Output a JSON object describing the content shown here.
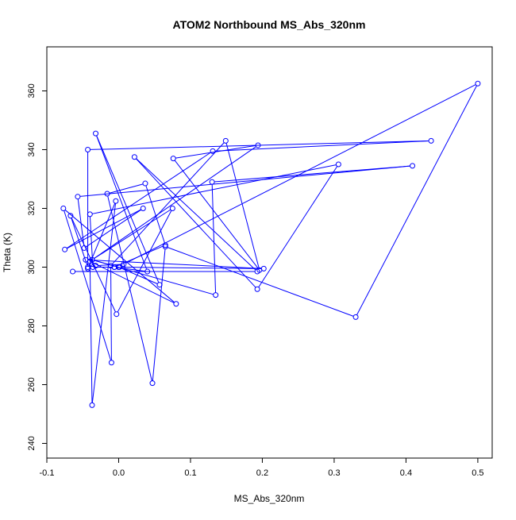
{
  "chart_data": {
    "type": "line",
    "title": "ATOM2 Northbound MS_Abs_320nm",
    "xlabel": "MS_Abs_320nm",
    "ylabel": "Theta (K)",
    "xlim": [
      -0.1,
      0.52
    ],
    "ylim": [
      235,
      375
    ],
    "xticks": [
      -0.1,
      0.0,
      0.1,
      0.2,
      0.3,
      0.4,
      0.5
    ],
    "xtick_labels": [
      "-0.1",
      "0.0",
      "0.1",
      "0.2",
      "0.3",
      "0.4",
      "0.5"
    ],
    "yticks": [
      240,
      260,
      280,
      300,
      320,
      340,
      360
    ],
    "ytick_labels": [
      "240",
      "260",
      "280",
      "300",
      "320",
      "340",
      "360"
    ],
    "grid": false,
    "marker": "open-circle",
    "series": [
      {
        "color": "#0000ff",
        "points": [
          [
            -0.064,
            298.5
          ],
          [
            0.193,
            298.5
          ],
          [
            0.022,
            337.5
          ],
          [
            0.193,
            292.5
          ],
          [
            0.306,
            335.0
          ],
          [
            -0.04,
            318.0
          ],
          [
            -0.036,
            300.0
          ],
          [
            -0.006,
            300.0
          ],
          [
            0.04,
            298.5
          ],
          [
            -0.032,
            345.5
          ],
          [
            0.057,
            294.0
          ],
          [
            0.0,
            300.0
          ],
          [
            -0.037,
            302.5
          ],
          [
            0.135,
            290.5
          ],
          [
            0.13,
            329.0
          ],
          [
            0.409,
            334.5
          ],
          [
            -0.057,
            324.0
          ],
          [
            -0.048,
            306.5
          ],
          [
            0.034,
            320.0
          ],
          [
            -0.075,
            306.0
          ],
          [
            0.131,
            339.5
          ],
          [
            0.435,
            343.0
          ],
          [
            -0.043,
            340.0
          ],
          [
            -0.043,
            299.5
          ],
          [
            -0.004,
            322.5
          ],
          [
            -0.037,
            253.0
          ],
          [
            -0.04,
            302.0
          ],
          [
            0.08,
            287.5
          ],
          [
            -0.077,
            320.0
          ],
          [
            -0.01,
            267.5
          ],
          [
            -0.011,
            300.5
          ],
          [
            0.149,
            343.0
          ],
          [
            0.196,
            299.0
          ],
          [
            0.076,
            337.0
          ],
          [
            0.194,
            341.5
          ],
          [
            -0.037,
            302.5
          ],
          [
            0.075,
            320.0
          ],
          [
            -0.003,
            284.0
          ],
          [
            -0.067,
            317.5
          ],
          [
            -0.043,
            300.0
          ],
          [
            -0.032,
            300.5
          ],
          [
            0.007,
            301.0
          ],
          [
            0.5,
            362.5
          ],
          [
            0.33,
            283.0
          ],
          [
            0.065,
            307.0
          ],
          [
            0.047,
            260.5
          ],
          [
            -0.016,
            325.0
          ],
          [
            0.037,
            328.5
          ],
          [
            0.065,
            307.5
          ],
          [
            -0.006,
            300.0
          ],
          [
            0.001,
            300.0
          ],
          [
            0.202,
            299.5
          ],
          [
            -0.046,
            302.5
          ]
        ]
      }
    ]
  }
}
